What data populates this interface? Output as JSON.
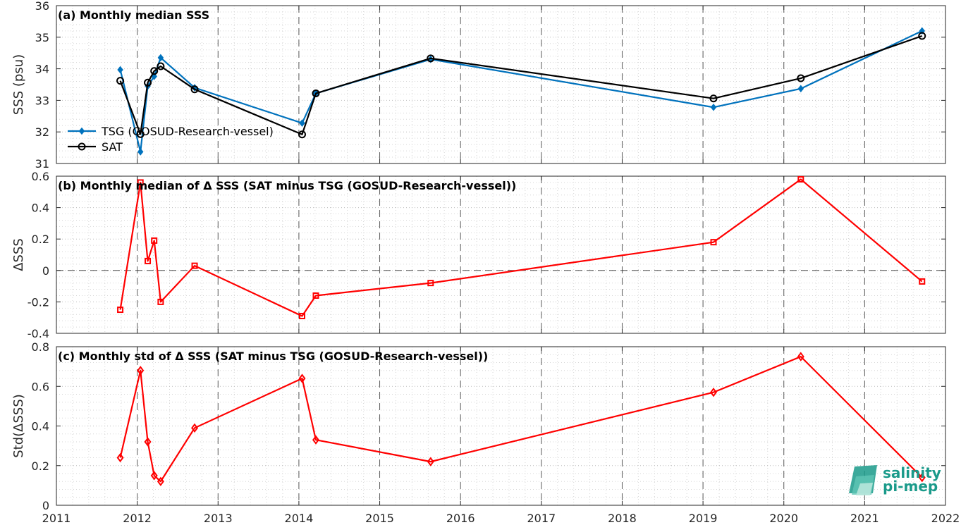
{
  "chart_data": [
    {
      "type": "line",
      "title": "(a) Monthly median SSS",
      "xlabel": "",
      "ylabel": "SSS (psu)",
      "xlim": [
        2011,
        2022
      ],
      "ylim": [
        31,
        36
      ],
      "yticks": [
        31,
        32,
        33,
        34,
        35,
        36
      ],
      "grid": true,
      "legend": "left",
      "series": [
        {
          "name": "TSG (GOSUD-Research-vessel)",
          "color": "#0072BD",
          "marker": "diamond-filled",
          "x": [
            2011.79,
            2012.04,
            2012.13,
            2012.21,
            2012.29,
            2012.71,
            2014.04,
            2014.21,
            2015.63,
            2019.13,
            2020.21,
            2021.71
          ],
          "y": [
            33.97,
            31.37,
            33.45,
            33.76,
            34.35,
            33.4,
            32.28,
            33.22,
            34.3,
            32.78,
            33.37,
            35.2
          ]
        },
        {
          "name": "SAT",
          "color": "#000000",
          "marker": "circle-open",
          "x": [
            2011.79,
            2012.04,
            2012.13,
            2012.21,
            2012.29,
            2012.71,
            2014.04,
            2014.21,
            2015.63,
            2019.13,
            2020.21,
            2021.71
          ],
          "y": [
            33.62,
            31.93,
            33.56,
            33.93,
            34.08,
            33.35,
            31.92,
            33.22,
            34.33,
            33.06,
            33.7,
            35.04
          ]
        }
      ]
    },
    {
      "type": "line",
      "title": "(b) Monthly median of Δ SSS (SAT minus TSG (GOSUD-Research-vessel))",
      "xlabel": "",
      "ylabel": "ΔSSS",
      "xlim": [
        2011,
        2022
      ],
      "ylim": [
        -0.4,
        0.6
      ],
      "yticks": [
        -0.4,
        -0.2,
        0,
        0.2,
        0.4,
        0.6
      ],
      "ytick_labels": [
        "-0.4",
        "-0.2",
        "0",
        "0.2",
        "0.4",
        "0.6"
      ],
      "grid": true,
      "zero_line": true,
      "series": [
        {
          "color": "#FF0000",
          "marker": "square-open",
          "x": [
            2011.79,
            2012.04,
            2012.13,
            2012.21,
            2012.29,
            2012.71,
            2014.04,
            2014.21,
            2015.63,
            2019.13,
            2020.21,
            2021.71
          ],
          "y": [
            -0.25,
            0.56,
            0.06,
            0.19,
            -0.2,
            0.03,
            -0.29,
            -0.16,
            -0.08,
            0.18,
            0.58,
            -0.07
          ]
        }
      ]
    },
    {
      "type": "line",
      "title": "(c) Monthly std of Δ SSS (SAT minus TSG (GOSUD-Research-vessel))",
      "xlabel": "",
      "ylabel": "Std(ΔSSS)",
      "xlim": [
        2011,
        2022
      ],
      "ylim": [
        0,
        0.8
      ],
      "yticks": [
        0,
        0.2,
        0.4,
        0.6,
        0.8
      ],
      "ytick_labels": [
        "0",
        "0.2",
        "0.4",
        "0.6",
        "0.8"
      ],
      "grid": true,
      "series": [
        {
          "color": "#FF0000",
          "marker": "diamond-open",
          "x": [
            2011.79,
            2012.04,
            2012.13,
            2012.21,
            2012.29,
            2012.71,
            2014.04,
            2014.21,
            2015.63,
            2019.13,
            2020.21,
            2021.71
          ],
          "y": [
            0.24,
            0.68,
            0.32,
            0.15,
            0.12,
            0.39,
            0.64,
            0.33,
            0.22,
            0.57,
            0.75,
            0.14
          ]
        }
      ]
    }
  ],
  "xaxis": {
    "ticks": [
      2011,
      2012,
      2013,
      2014,
      2015,
      2016,
      2017,
      2018,
      2019,
      2020,
      2021,
      2022
    ]
  },
  "logo": {
    "line1": "salinity",
    "line2": "pi-mep",
    "color": "#1a9a8a"
  }
}
